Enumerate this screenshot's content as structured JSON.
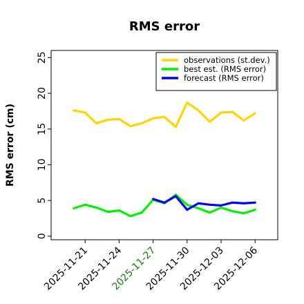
{
  "chart_data": {
    "type": "line",
    "title": "RMS error",
    "xlabel": "",
    "ylabel": "RMS error (cm)",
    "xlim": [
      "2025-11-18",
      "2025-12-08"
    ],
    "ylim": [
      -0.5,
      26
    ],
    "yticks": [
      0,
      5,
      10,
      15,
      20,
      25
    ],
    "xticks": [
      {
        "date": "2025-11-21",
        "label": "2025-11-21",
        "color": "#000000"
      },
      {
        "date": "2025-11-24",
        "label": "2025-11-24",
        "color": "#000000"
      },
      {
        "date": "2025-11-27",
        "label": "2025-11-27",
        "color": "#1a7a1a"
      },
      {
        "date": "2025-11-30",
        "label": "2025-11-30",
        "color": "#000000"
      },
      {
        "date": "2025-12-03",
        "label": "2025-12-03",
        "color": "#000000"
      },
      {
        "date": "2025-12-06",
        "label": "2025-12-06",
        "color": "#000000"
      }
    ],
    "legend_position": "top-right",
    "series": [
      {
        "name": "observations (st.dev.)",
        "color": "#ffd400",
        "points": [
          [
            "2025-11-20",
            17.6
          ],
          [
            "2025-11-21",
            17.3
          ],
          [
            "2025-11-22",
            15.8
          ],
          [
            "2025-11-23",
            16.3
          ],
          [
            "2025-11-24",
            16.4
          ],
          [
            "2025-11-25",
            15.4
          ],
          [
            "2025-11-26",
            15.8
          ],
          [
            "2025-11-27",
            16.5
          ],
          [
            "2025-11-28",
            16.7
          ],
          [
            "2025-11-29",
            15.3
          ],
          [
            "2025-11-30",
            18.7
          ],
          [
            "2025-12-01",
            17.6
          ],
          [
            "2025-12-02",
            16.0
          ],
          [
            "2025-12-03",
            17.3
          ],
          [
            "2025-12-04",
            17.4
          ],
          [
            "2025-12-05",
            16.2
          ],
          [
            "2025-12-06",
            17.2
          ]
        ]
      },
      {
        "name": "best est. (RMS error)",
        "color": "#00ee00",
        "points": [
          [
            "2025-11-20",
            3.9
          ],
          [
            "2025-11-21",
            4.4
          ],
          [
            "2025-11-22",
            4.0
          ],
          [
            "2025-11-23",
            3.4
          ],
          [
            "2025-11-24",
            3.6
          ],
          [
            "2025-11-25",
            2.8
          ],
          [
            "2025-11-26",
            3.3
          ],
          [
            "2025-11-27",
            5.1
          ],
          [
            "2025-11-28",
            4.6
          ],
          [
            "2025-11-29",
            5.8
          ],
          [
            "2025-11-30",
            4.4
          ],
          [
            "2025-12-01",
            3.9
          ],
          [
            "2025-12-02",
            3.3
          ],
          [
            "2025-12-03",
            4.0
          ],
          [
            "2025-12-04",
            3.5
          ],
          [
            "2025-12-05",
            3.2
          ],
          [
            "2025-12-06",
            3.7
          ]
        ]
      },
      {
        "name": "forecast (RMS error)",
        "color": "#0000ee",
        "points": [
          [
            "2025-11-27",
            5.2
          ],
          [
            "2025-11-28",
            4.7
          ],
          [
            "2025-11-29",
            5.6
          ],
          [
            "2025-11-30",
            3.7
          ],
          [
            "2025-12-01",
            4.6
          ],
          [
            "2025-12-02",
            4.4
          ],
          [
            "2025-12-03",
            4.3
          ],
          [
            "2025-12-04",
            4.7
          ],
          [
            "2025-12-05",
            4.6
          ],
          [
            "2025-12-06",
            4.7
          ]
        ]
      }
    ]
  }
}
